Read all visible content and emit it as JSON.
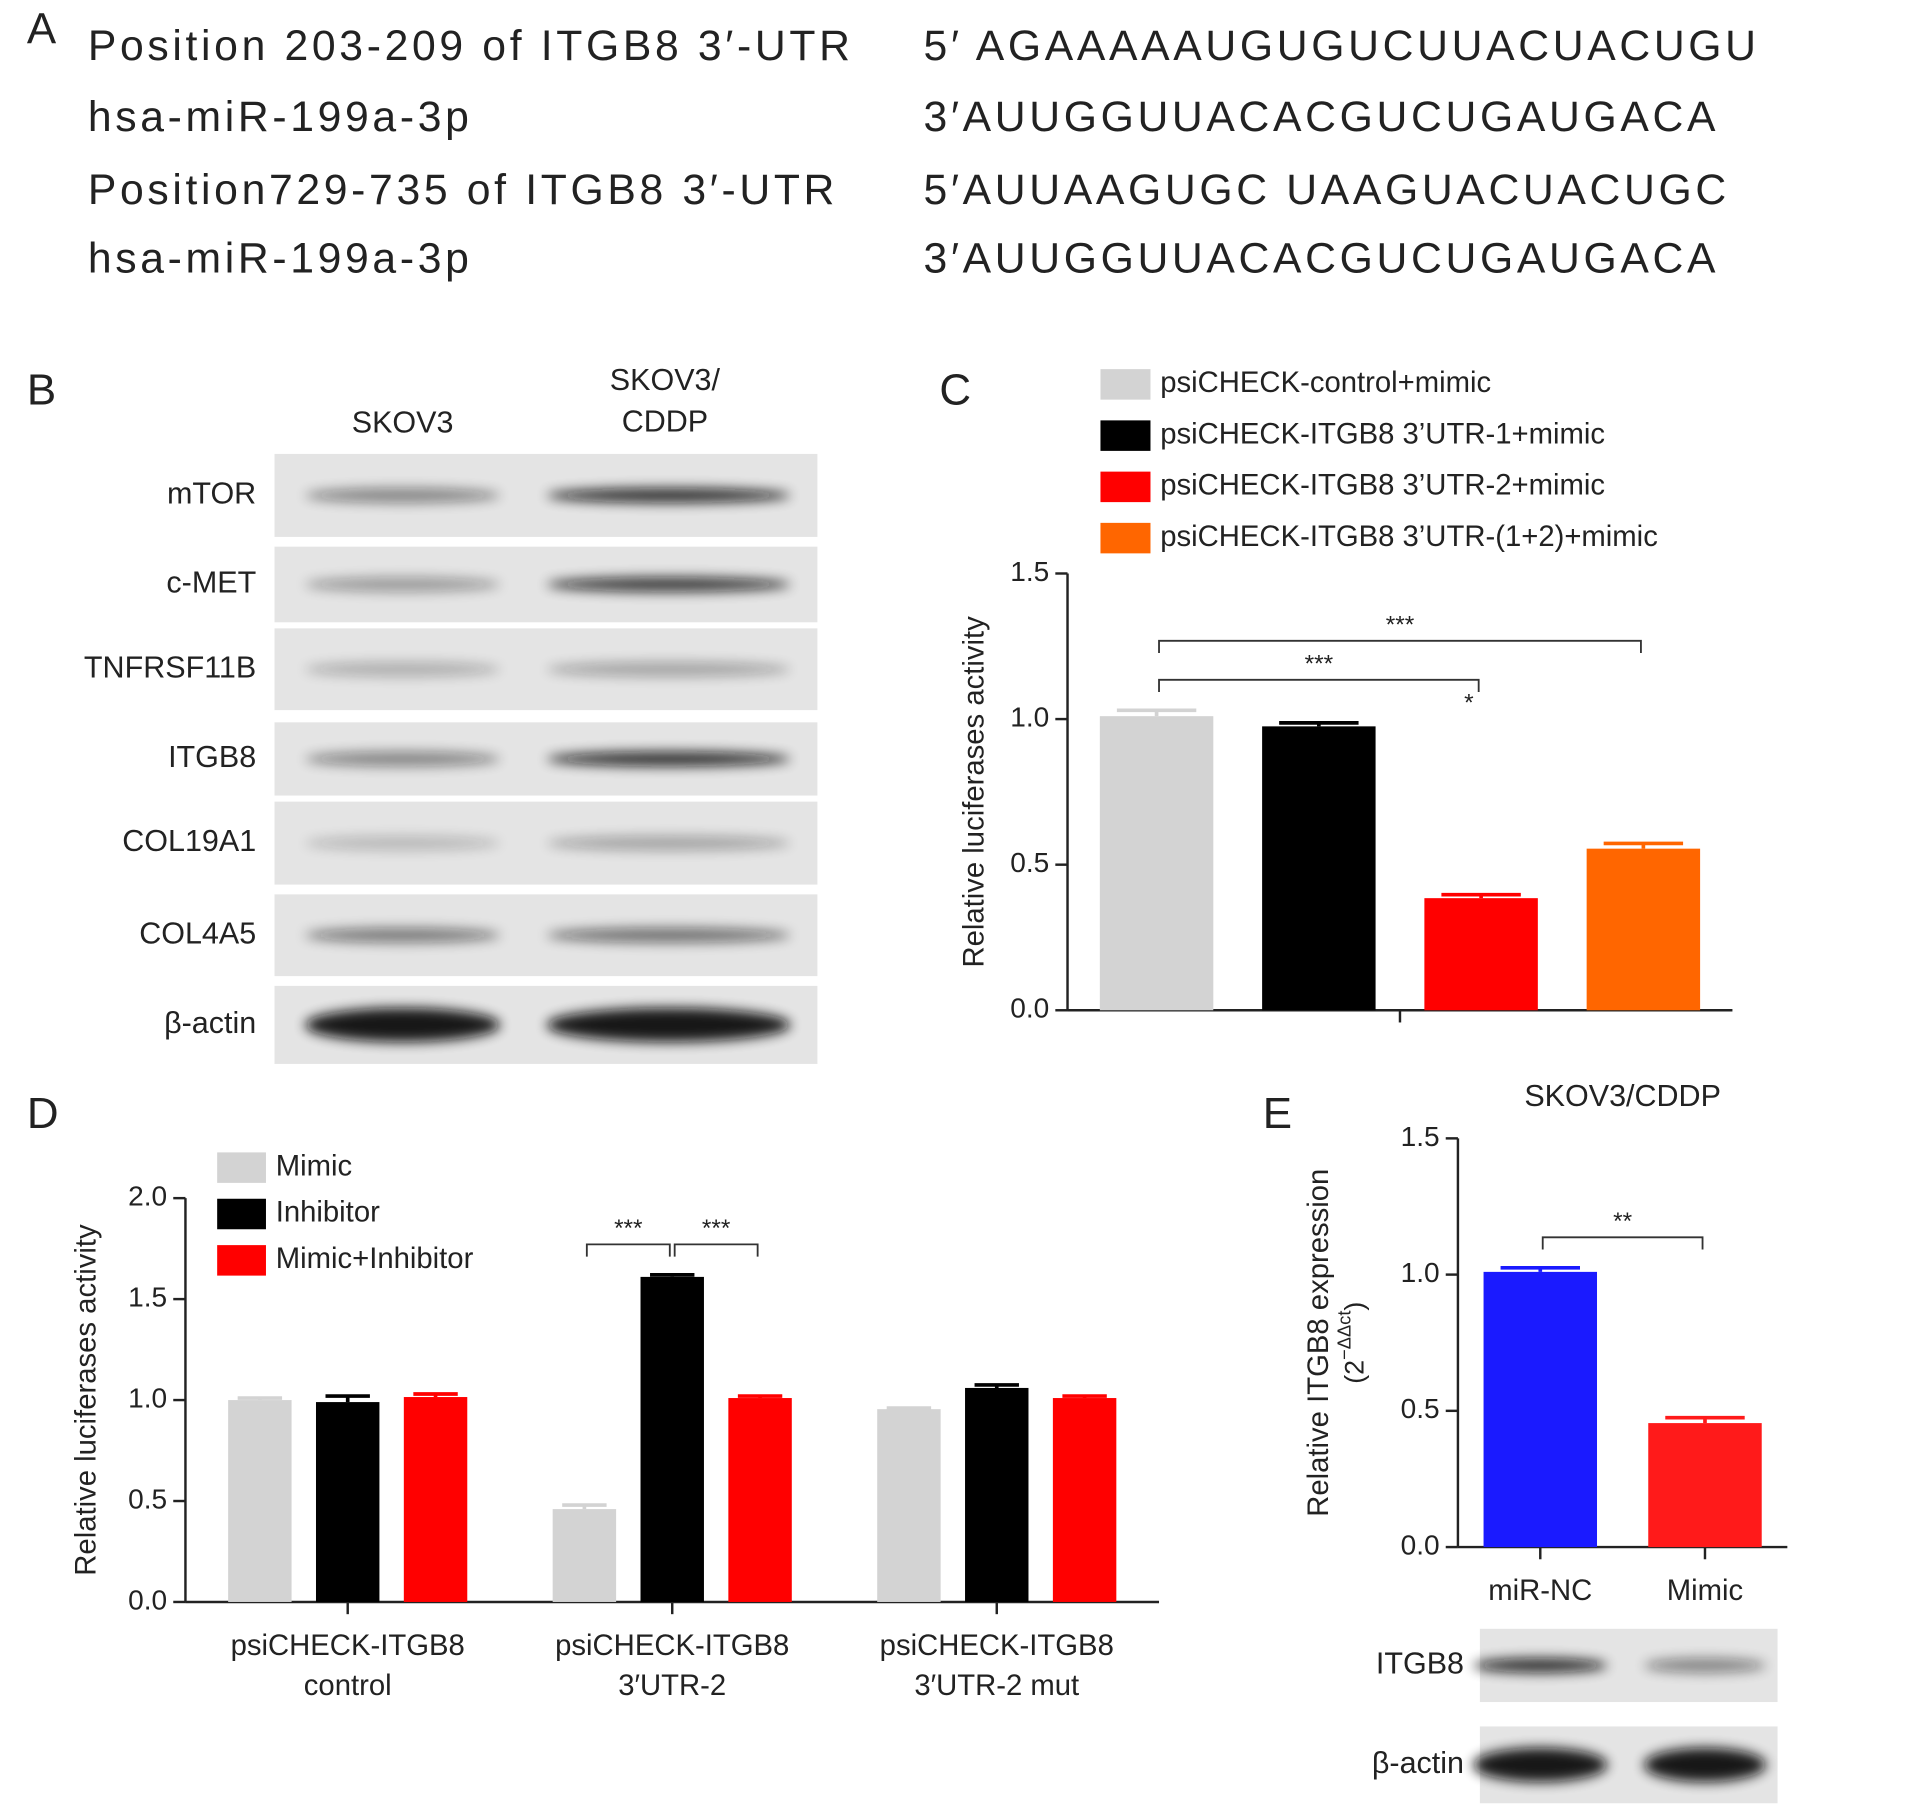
{
  "panel_a": {
    "label": "A",
    "rows": [
      {
        "name": "Position 203-209 of ITGB8 3′-UTR",
        "sequence": "5′ AGAAAAAUGUGUCUUACUACUGU"
      },
      {
        "name": "hsa-miR-199a-3p",
        "sequence": "3′AUUGGUUACACGUCUGAUGACA"
      },
      {
        "name": "Position729-735 of ITGB8 3′-UTR",
        "sequence": "5′AUUAAGUGC UAAGUACUACUGC"
      },
      {
        "name": "hsa-miR-199a-3p",
        "sequence": "3′AUUGGUUACACGUCUGAUGACA"
      }
    ]
  },
  "panel_b": {
    "label": "B",
    "columns": [
      [
        "SKOV3"
      ],
      [
        "SKOV3/",
        "CDDP"
      ]
    ],
    "rows": [
      "mTOR",
      "c-MET",
      "TNFRSF11B",
      "ITGB8",
      "COL19A1",
      "COL4A5",
      "β-actin"
    ]
  },
  "chart_data": [
    {
      "type": "bar",
      "label": "C",
      "ylabel": "Relative luciferases activity",
      "categories": [
        null
      ],
      "series": [
        {
          "name": "psiCHECK-control+mimic",
          "color": "#d3d3d3",
          "values": [
            1.01
          ],
          "errors": [
            0.02
          ]
        },
        {
          "name": "psiCHECK-ITGB8 3’UTR-1+mimic",
          "color": "#000000",
          "values": [
            0.975
          ],
          "errors": [
            0.012
          ]
        },
        {
          "name": "psiCHECK-ITGB8 3’UTR-2+mimic",
          "color": "#ff0000",
          "values": [
            0.385
          ],
          "errors": [
            0.012
          ]
        },
        {
          "name": "psiCHECK-ITGB8 3’UTR-(1+2)+mimic",
          "color": "#ff6600",
          "values": [
            0.555
          ],
          "errors": [
            0.018
          ]
        }
      ],
      "ylim": [
        0,
        1.5
      ],
      "yticks": [
        {
          "value": 0,
          "label": "0.0"
        },
        {
          "value": 0.5,
          "label": "0.5"
        },
        {
          "value": 1,
          "label": "1.0"
        },
        {
          "value": 1.5,
          "label": "1.5"
        }
      ],
      "annotations": [
        {
          "text": "***",
          "bars": [
            [
              0,
              0
            ],
            [
              0,
              2
            ]
          ]
        },
        {
          "text": "***",
          "bars": [
            [
              0,
              0
            ],
            [
              0,
              3
            ]
          ]
        },
        {
          "text": "*",
          "bars": [
            [
              0,
              2
            ]
          ]
        }
      ]
    },
    {
      "type": "bar",
      "label": "D",
      "ylabel": "Relative luciferases activity",
      "categories": [
        [
          "psiCHECK-ITGB8",
          "control"
        ],
        [
          "psiCHECK-ITGB8",
          "3′UTR-2"
        ],
        [
          "psiCHECK-ITGB8",
          "3′UTR-2 mut"
        ]
      ],
      "series": [
        {
          "name": "Mimic",
          "color": "#d3d3d3",
          "values": [
            1.0,
            0.46,
            0.955
          ],
          "errors": [
            0.01,
            0.02,
            0.005
          ]
        },
        {
          "name": "Inhibitor",
          "color": "#000000",
          "values": [
            0.99,
            1.61,
            1.06
          ],
          "errors": [
            0.03,
            0.01,
            0.015
          ]
        },
        {
          "name": "Mimic+Inhibitor",
          "color": "#ff0000",
          "values": [
            1.015,
            1.01,
            1.01
          ],
          "errors": [
            0.015,
            0.01,
            0.01
          ]
        }
      ],
      "ylim": [
        0,
        2
      ],
      "yticks": [
        {
          "value": 0,
          "label": "0.0"
        },
        {
          "value": 0.5,
          "label": "0.5"
        },
        {
          "value": 1,
          "label": "1.0"
        },
        {
          "value": 1.5,
          "label": "1.5"
        },
        {
          "value": 2,
          "label": "2.0"
        }
      ],
      "annotations": [
        {
          "text": "***",
          "bars": [
            [
              1,
              0
            ],
            [
              1,
              1
            ]
          ]
        },
        {
          "text": "***",
          "bars": [
            [
              1,
              1
            ],
            [
              1,
              2
            ]
          ]
        }
      ]
    },
    {
      "type": "bar",
      "label": "E",
      "title": "SKOV3/CDDP",
      "ylabel": "Relative ITGB8 expression",
      "ylabel_formula": [
        "(2",
        "−ΔΔct",
        ")"
      ],
      "categories": [
        "miR-NC",
        "Mimic"
      ],
      "series": [
        {
          "values": [
            1.01,
            0.455
          ],
          "errors": [
            0.015,
            0.02
          ],
          "colors": [
            "#1a1aff",
            "#ff1a1a"
          ]
        }
      ],
      "ylim": [
        0,
        1.5
      ],
      "yticks": [
        {
          "value": 0,
          "label": "0.0"
        },
        {
          "value": 0.5,
          "label": "0.5"
        },
        {
          "value": 1,
          "label": "1.0"
        },
        {
          "value": 1.5,
          "label": "1.5"
        }
      ],
      "annotations": [
        {
          "text": "**",
          "bars": [
            [
              0,
              0
            ],
            [
              1,
              0
            ]
          ]
        }
      ],
      "blot_rows": [
        "ITGB8",
        "β-actin"
      ]
    }
  ]
}
